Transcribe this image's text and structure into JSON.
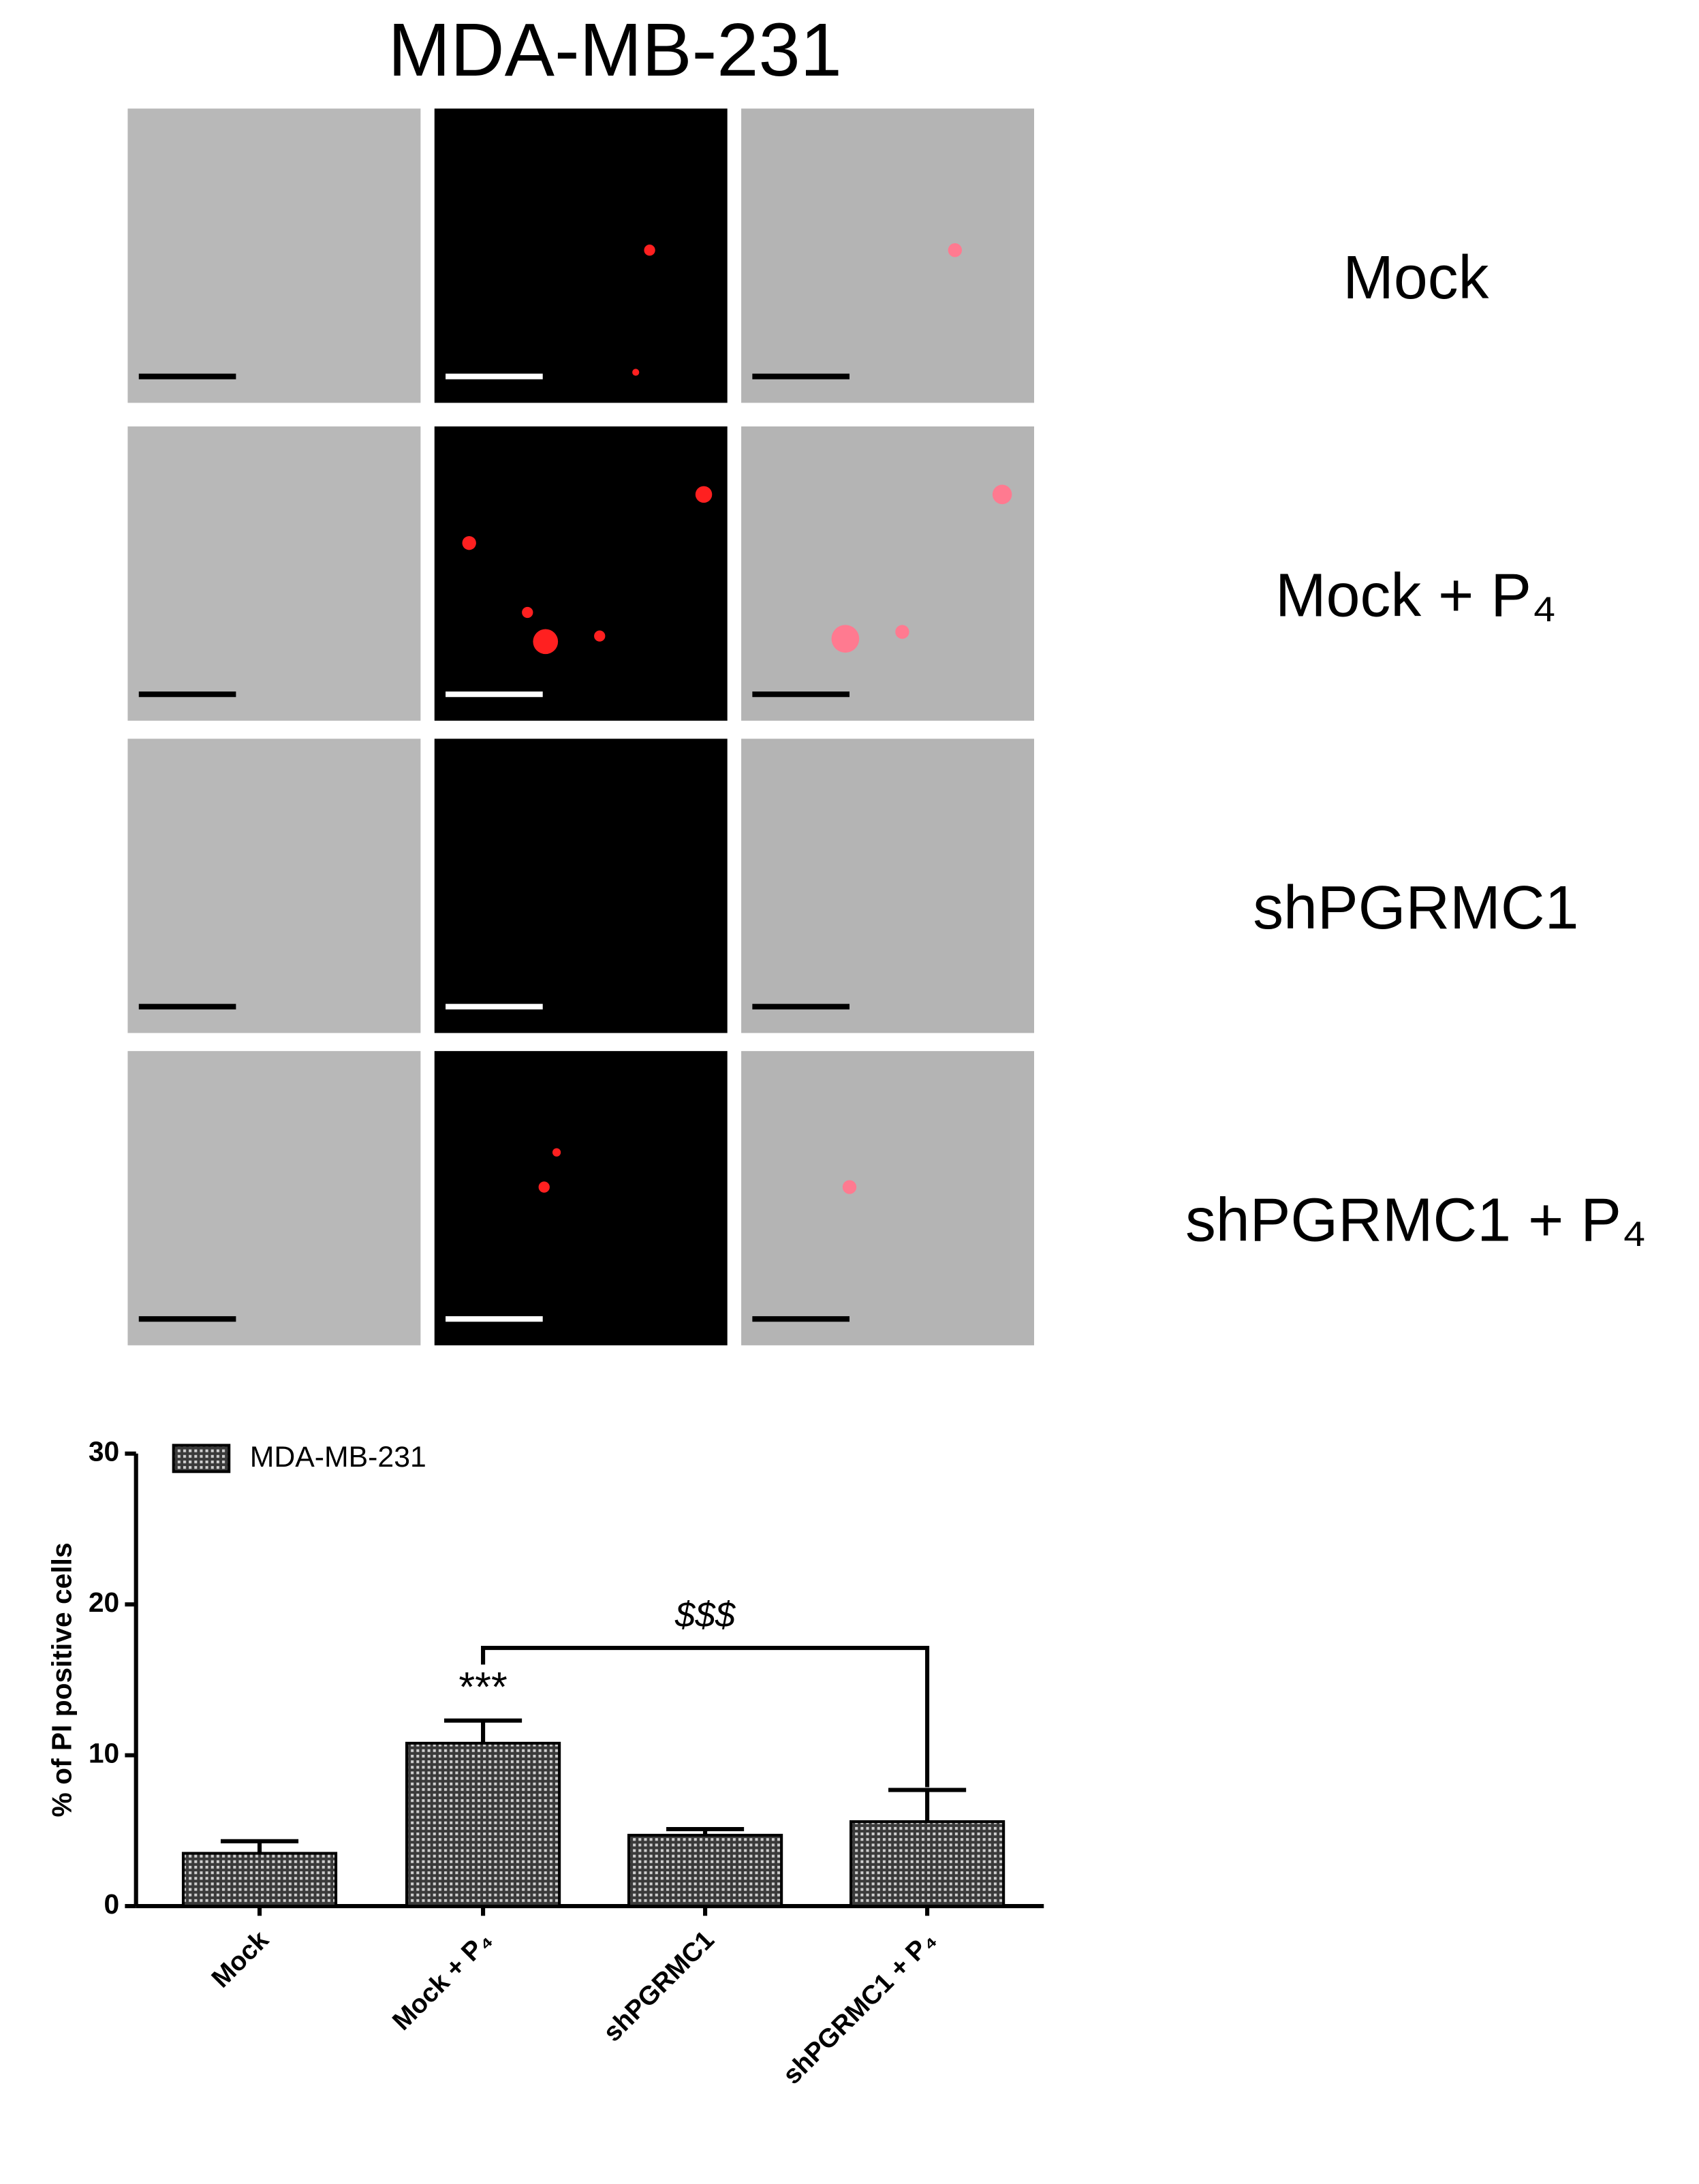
{
  "figure": {
    "title": "MDA-MB-231",
    "rows": [
      "Mock",
      "Mock + P₄",
      "shPGRMC1",
      "shPGRMC1 + P₄"
    ]
  },
  "chart_data": {
    "type": "bar",
    "ylabel": "% of PI positive cells",
    "categories": [
      "Mock",
      "Mock + P₄",
      "shPGRMC1",
      "shPGRMC1 + P₄"
    ],
    "series": [
      {
        "name": "MDA-MB-231",
        "color": "#555555",
        "values": [
          3.5,
          10.8,
          4.7,
          5.6
        ],
        "errors": [
          0.8,
          1.5,
          0.4,
          2.1
        ]
      }
    ],
    "ylim": [
      0,
      30
    ],
    "yticks": [
      0,
      10,
      20,
      30
    ],
    "annotations": [
      "***",
      "$$$"
    ]
  }
}
